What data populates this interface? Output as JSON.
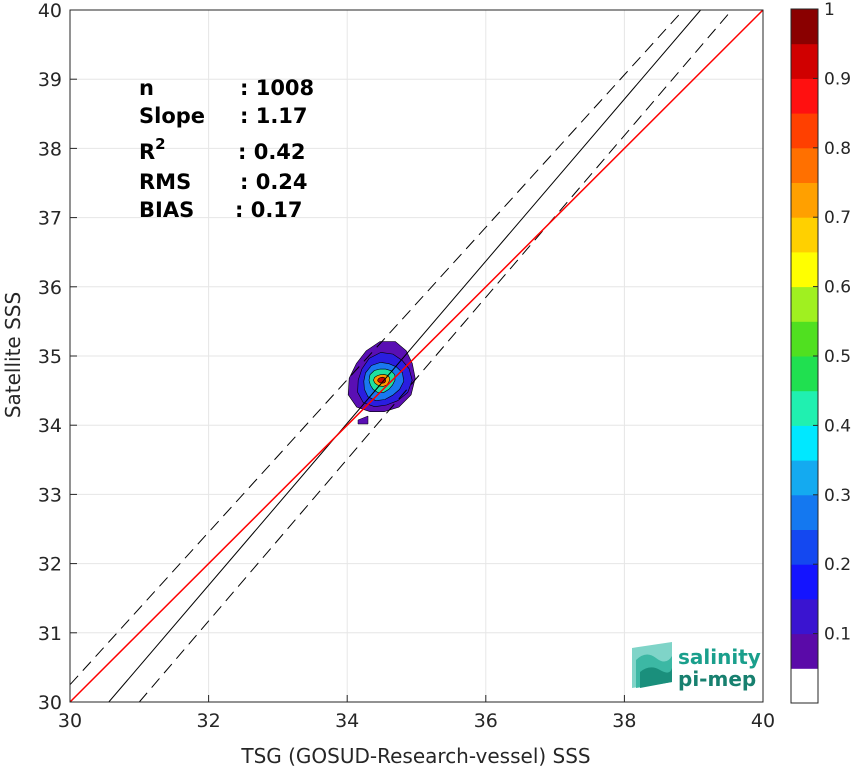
{
  "chart_data": {
    "type": "scatter",
    "xlabel": "TSG (GOSUD-Research-vessel) SSS",
    "ylabel": "Satellite SSS",
    "xlim": [
      30,
      40
    ],
    "ylim": [
      30,
      40
    ],
    "xticks": [
      "30",
      "32",
      "34",
      "36",
      "38",
      "40"
    ],
    "yticks": [
      "30",
      "31",
      "32",
      "33",
      "34",
      "35",
      "36",
      "37",
      "38",
      "39",
      "40"
    ],
    "grid": true,
    "stats": [
      {
        "label": "n",
        "value": ": 1008"
      },
      {
        "label": "Slope",
        "value": ": 1.17"
      },
      {
        "label": "R",
        "sup": "2",
        "value": ": 0.42"
      },
      {
        "label": "RMS",
        "value": ": 0.24"
      },
      {
        "label": "BIAS",
        "value": ": 0.17"
      }
    ],
    "lines": {
      "one_to_one": {
        "color": "#ff0000",
        "points": [
          [
            30,
            30
          ],
          [
            40,
            40
          ]
        ]
      },
      "regression": {
        "color": "#000000",
        "slope": 1.17,
        "points": [
          [
            30.56,
            30
          ],
          [
            39.1,
            40
          ]
        ]
      },
      "bounds_dashed": {
        "color": "#000000",
        "upper": [
          [
            30,
            30.25
          ],
          [
            38.85,
            40
          ]
        ],
        "lower": [
          [
            31.0,
            30
          ],
          [
            39.55,
            40
          ]
        ]
      }
    },
    "density_contours": {
      "center": [
        34.5,
        34.65
      ],
      "levels": [
        0.05,
        0.15,
        0.3,
        0.5,
        0.75,
        0.95
      ],
      "colors": [
        "#5a0fb4",
        "#2a1ee0",
        "#1a78f0",
        "#20e0a0",
        "#ff9a00",
        "#c80000"
      ]
    },
    "colorbar": {
      "ticks": [
        "0.1",
        "0.2",
        "0.3",
        "0.4",
        "0.5",
        "0.6",
        "0.7",
        "0.8",
        "0.9",
        "1"
      ],
      "colors": [
        "#ffffff",
        "#5a0aa8",
        "#3a14d0",
        "#1414ff",
        "#1448f0",
        "#1478f0",
        "#14aaf0",
        "#00e8ff",
        "#20f0b0",
        "#20e050",
        "#50e020",
        "#a0f020",
        "#ffff00",
        "#ffd000",
        "#ffa000",
        "#ff7000",
        "#ff4000",
        "#ff1010",
        "#d00000",
        "#8a0000"
      ]
    }
  },
  "logo": {
    "line1": "salinity",
    "line2": "pi-mep",
    "color": "#1a9f8c"
  }
}
